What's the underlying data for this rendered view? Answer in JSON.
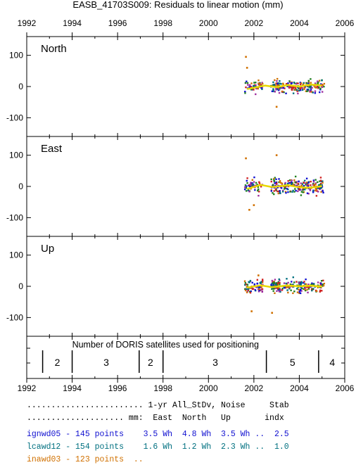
{
  "title": "EASB_41703S009: Residuals to linear motion (mm)",
  "colors": {
    "axis": "#000000",
    "yellow": "#e8d800",
    "blue": "#1010d0",
    "teal": "#007080",
    "orange": "#d07000"
  },
  "chart_data": [
    {
      "type": "scatter",
      "panel": "North",
      "x_ticks": [
        1992,
        1994,
        1996,
        1998,
        2000,
        2002,
        2004,
        2006
      ],
      "y_ticks": [
        100,
        0,
        -100
      ],
      "xlim": [
        1992,
        2006
      ],
      "ylim": [
        -160,
        160
      ],
      "data_x_range": [
        2001.6,
        2005.1
      ],
      "typical_spread_mm": 30,
      "notable_points": [
        [
          2001.65,
          95
        ],
        [
          2001.7,
          60
        ],
        [
          2003.0,
          -65
        ]
      ],
      "smooth_trend": [
        [
          2001.7,
          -8
        ],
        [
          2002.5,
          3
        ],
        [
          2003.0,
          -2
        ],
        [
          2003.5,
          5
        ],
        [
          2004.0,
          0
        ],
        [
          2004.5,
          6
        ],
        [
          2005.0,
          4
        ]
      ]
    },
    {
      "type": "scatter",
      "panel": "East",
      "x_ticks": [
        1992,
        1994,
        1996,
        1998,
        2000,
        2002,
        2004,
        2006
      ],
      "y_ticks": [
        100,
        0,
        -100
      ],
      "xlim": [
        1992,
        2006
      ],
      "ylim": [
        -160,
        160
      ],
      "data_x_range": [
        2001.6,
        2005.1
      ],
      "typical_spread_mm": 40,
      "notable_points": [
        [
          2001.65,
          90
        ],
        [
          2003.0,
          100
        ],
        [
          2001.8,
          -75
        ],
        [
          2002.0,
          -60
        ]
      ],
      "smooth_trend": [
        [
          2001.7,
          -8
        ],
        [
          2002.3,
          5
        ],
        [
          2002.8,
          -2
        ],
        [
          2003.5,
          4
        ],
        [
          2004.0,
          -3
        ],
        [
          2004.5,
          -4
        ],
        [
          2005.0,
          1
        ]
      ]
    },
    {
      "type": "scatter",
      "panel": "Up",
      "x_ticks": [
        1992,
        1994,
        1996,
        1998,
        2000,
        2002,
        2004,
        2006
      ],
      "y_ticks": [
        100,
        0,
        -100
      ],
      "xlim": [
        1992,
        2006
      ],
      "ylim": [
        -160,
        160
      ],
      "data_x_range": [
        2001.6,
        2005.1
      ],
      "typical_spread_mm": 30,
      "notable_points": [
        [
          2001.9,
          -80
        ],
        [
          2002.8,
          -85
        ],
        [
          2002.2,
          35
        ]
      ],
      "smooth_trend": [
        [
          2001.7,
          -4
        ],
        [
          2002.3,
          3
        ],
        [
          2002.8,
          -3
        ],
        [
          2003.5,
          3
        ],
        [
          2004.0,
          0
        ],
        [
          2004.5,
          2
        ],
        [
          2005.0,
          -1
        ]
      ]
    },
    {
      "type": "table",
      "panel": "DORIS",
      "label": "Number of DORIS satellites used for positioning",
      "dividers": [
        1992.7,
        1994.0,
        1996.95,
        1998.0,
        2002.55,
        2004.85
      ],
      "segments": [
        {
          "x": 1993.35,
          "n": "2"
        },
        {
          "x": 1995.5,
          "n": "3"
        },
        {
          "x": 1997.45,
          "n": "2"
        },
        {
          "x": 2000.3,
          "n": "3"
        },
        {
          "x": 2003.7,
          "n": "5"
        },
        {
          "x": 2005.45,
          "n": "4"
        }
      ]
    }
  ],
  "stats": {
    "header1": "........................ 1-yr All_StDv, Noise     Stab",
    "header2": ".................... mm:  East  North   Up       indx",
    "rows": [
      {
        "text": "ignwd05 - 145 points    3.5 Wh  4.8 Wh  3.5 Wh ..  2.5",
        "color": "#1010d0"
      },
      {
        "text": "lcawd12 - 154 points    1.6 Wh  1.2 Wh  2.3 Wh ..  1.0",
        "color": "#007080"
      },
      {
        "text": "inawd03 - 123 points  ..",
        "color": "#d07000"
      }
    ]
  }
}
